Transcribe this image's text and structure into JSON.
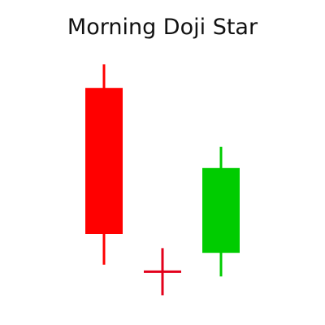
{
  "title": "Morning Doji Star",
  "chart_data": {
    "type": "candlestick",
    "title": "Morning Doji Star",
    "xlabel": "",
    "ylabel": "",
    "grid": false,
    "axes_visible": false,
    "ylim": [
      0,
      100
    ],
    "candles": [
      {
        "open": 82,
        "close": 20,
        "high": 92,
        "low": 7,
        "color": "#ff0000"
      },
      {
        "open": 4,
        "close": 4,
        "high": 14,
        "low": -6,
        "color": "#e3001b"
      },
      {
        "open": 12,
        "close": 48,
        "high": 57,
        "low": 2,
        "color": "#00cc00"
      }
    ]
  }
}
